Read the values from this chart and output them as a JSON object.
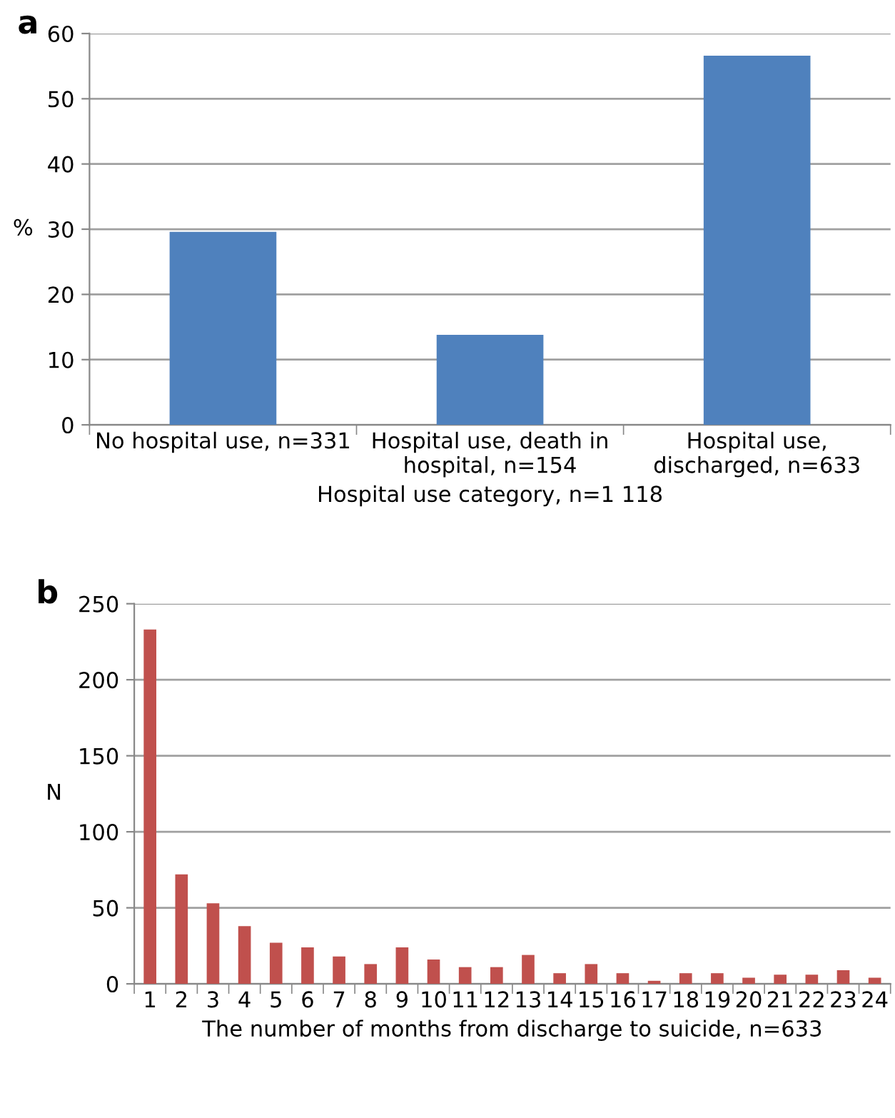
{
  "chart_data": [
    {
      "type": "bar",
      "title": "a",
      "ylabel": "%",
      "xlabel": "Hospital use category, n=1 118",
      "categories": [
        "No hospital use, n=331",
        "Hospital use, death in\nhospital, n=154",
        "Hospital use,\ndischarged, n=633"
      ],
      "values": [
        29.6,
        13.8,
        56.6
      ],
      "color": "#4f81bd",
      "ylim": [
        0,
        60
      ],
      "yticks": [
        0,
        10,
        20,
        30,
        40,
        50,
        60
      ],
      "grid": "y"
    },
    {
      "type": "bar",
      "title": "b",
      "ylabel": "N",
      "xlabel": "The number of months from discharge to suicide, n=633",
      "categories": [
        "1",
        "2",
        "3",
        "4",
        "5",
        "6",
        "7",
        "8",
        "9",
        "10",
        "11",
        "12",
        "13",
        "14",
        "15",
        "16",
        "17",
        "18",
        "19",
        "20",
        "21",
        "22",
        "23",
        "24"
      ],
      "values": [
        233,
        72,
        53,
        38,
        27,
        24,
        18,
        13,
        24,
        16,
        11,
        11,
        19,
        7,
        13,
        7,
        2,
        7,
        7,
        4,
        6,
        6,
        9,
        4
      ],
      "color": "#c0504d",
      "ylim": [
        0,
        250
      ],
      "yticks": [
        0,
        50,
        100,
        150,
        200,
        250
      ],
      "grid": "y"
    }
  ]
}
